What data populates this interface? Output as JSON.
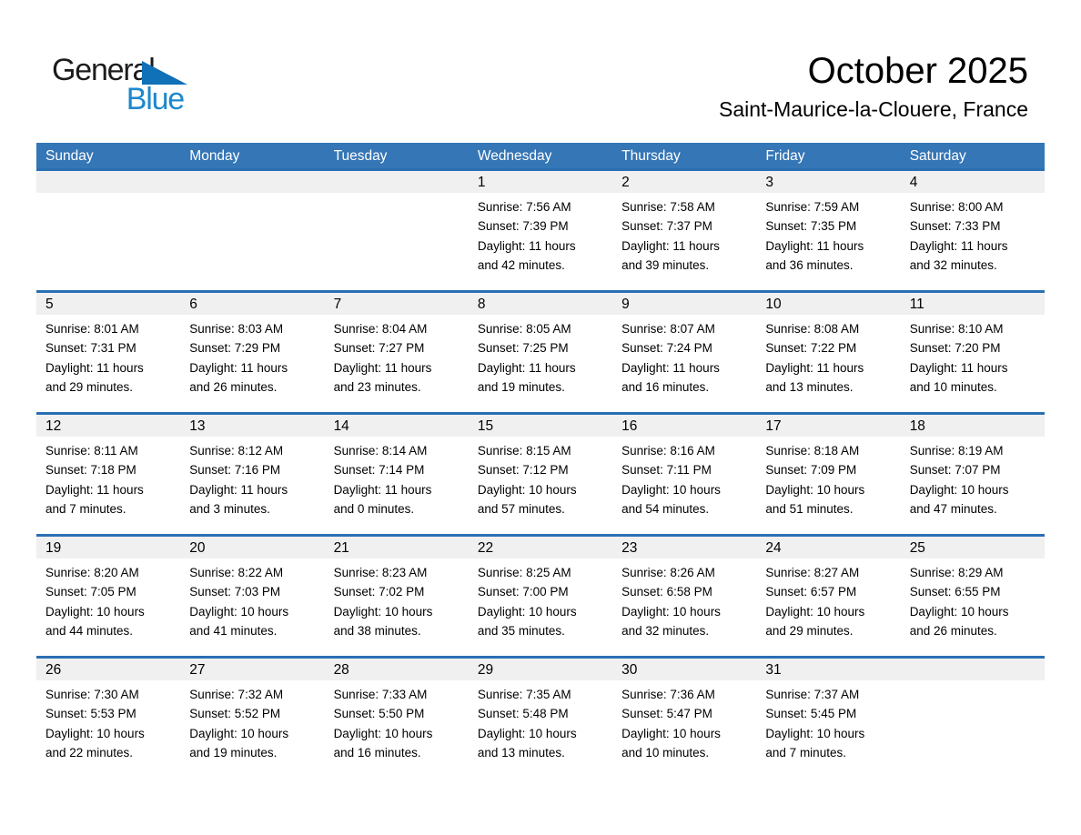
{
  "logo": {
    "line1": "General",
    "line2": "Blue"
  },
  "header": {
    "title": "October 2025",
    "location": "Saint-Maurice-la-Clouere, France"
  },
  "colors": {
    "header_bar": "#3576B6",
    "row_divider": "#2A6FB3",
    "day_band": "#F0F0F0",
    "logo_blue": "#1E88CC",
    "logo_triangle": "#1070B8"
  },
  "calendar": {
    "day_headers": [
      "Sunday",
      "Monday",
      "Tuesday",
      "Wednesday",
      "Thursday",
      "Friday",
      "Saturday"
    ],
    "weeks": [
      [
        null,
        null,
        null,
        {
          "day": "1",
          "sunrise": "Sunrise: 7:56 AM",
          "sunset": "Sunset: 7:39 PM",
          "daylight": [
            "Daylight: 11 hours",
            "and 42 minutes."
          ]
        },
        {
          "day": "2",
          "sunrise": "Sunrise: 7:58 AM",
          "sunset": "Sunset: 7:37 PM",
          "daylight": [
            "Daylight: 11 hours",
            "and 39 minutes."
          ]
        },
        {
          "day": "3",
          "sunrise": "Sunrise: 7:59 AM",
          "sunset": "Sunset: 7:35 PM",
          "daylight": [
            "Daylight: 11 hours",
            "and 36 minutes."
          ]
        },
        {
          "day": "4",
          "sunrise": "Sunrise: 8:00 AM",
          "sunset": "Sunset: 7:33 PM",
          "daylight": [
            "Daylight: 11 hours",
            "and 32 minutes."
          ]
        }
      ],
      [
        {
          "day": "5",
          "sunrise": "Sunrise: 8:01 AM",
          "sunset": "Sunset: 7:31 PM",
          "daylight": [
            "Daylight: 11 hours",
            "and 29 minutes."
          ]
        },
        {
          "day": "6",
          "sunrise": "Sunrise: 8:03 AM",
          "sunset": "Sunset: 7:29 PM",
          "daylight": [
            "Daylight: 11 hours",
            "and 26 minutes."
          ]
        },
        {
          "day": "7",
          "sunrise": "Sunrise: 8:04 AM",
          "sunset": "Sunset: 7:27 PM",
          "daylight": [
            "Daylight: 11 hours",
            "and 23 minutes."
          ]
        },
        {
          "day": "8",
          "sunrise": "Sunrise: 8:05 AM",
          "sunset": "Sunset: 7:25 PM",
          "daylight": [
            "Daylight: 11 hours",
            "and 19 minutes."
          ]
        },
        {
          "day": "9",
          "sunrise": "Sunrise: 8:07 AM",
          "sunset": "Sunset: 7:24 PM",
          "daylight": [
            "Daylight: 11 hours",
            "and 16 minutes."
          ]
        },
        {
          "day": "10",
          "sunrise": "Sunrise: 8:08 AM",
          "sunset": "Sunset: 7:22 PM",
          "daylight": [
            "Daylight: 11 hours",
            "and 13 minutes."
          ]
        },
        {
          "day": "11",
          "sunrise": "Sunrise: 8:10 AM",
          "sunset": "Sunset: 7:20 PM",
          "daylight": [
            "Daylight: 11 hours",
            "and 10 minutes."
          ]
        }
      ],
      [
        {
          "day": "12",
          "sunrise": "Sunrise: 8:11 AM",
          "sunset": "Sunset: 7:18 PM",
          "daylight": [
            "Daylight: 11 hours",
            "and 7 minutes."
          ]
        },
        {
          "day": "13",
          "sunrise": "Sunrise: 8:12 AM",
          "sunset": "Sunset: 7:16 PM",
          "daylight": [
            "Daylight: 11 hours",
            "and 3 minutes."
          ]
        },
        {
          "day": "14",
          "sunrise": "Sunrise: 8:14 AM",
          "sunset": "Sunset: 7:14 PM",
          "daylight": [
            "Daylight: 11 hours",
            "and 0 minutes."
          ]
        },
        {
          "day": "15",
          "sunrise": "Sunrise: 8:15 AM",
          "sunset": "Sunset: 7:12 PM",
          "daylight": [
            "Daylight: 10 hours",
            "and 57 minutes."
          ]
        },
        {
          "day": "16",
          "sunrise": "Sunrise: 8:16 AM",
          "sunset": "Sunset: 7:11 PM",
          "daylight": [
            "Daylight: 10 hours",
            "and 54 minutes."
          ]
        },
        {
          "day": "17",
          "sunrise": "Sunrise: 8:18 AM",
          "sunset": "Sunset: 7:09 PM",
          "daylight": [
            "Daylight: 10 hours",
            "and 51 minutes."
          ]
        },
        {
          "day": "18",
          "sunrise": "Sunrise: 8:19 AM",
          "sunset": "Sunset: 7:07 PM",
          "daylight": [
            "Daylight: 10 hours",
            "and 47 minutes."
          ]
        }
      ],
      [
        {
          "day": "19",
          "sunrise": "Sunrise: 8:20 AM",
          "sunset": "Sunset: 7:05 PM",
          "daylight": [
            "Daylight: 10 hours",
            "and 44 minutes."
          ]
        },
        {
          "day": "20",
          "sunrise": "Sunrise: 8:22 AM",
          "sunset": "Sunset: 7:03 PM",
          "daylight": [
            "Daylight: 10 hours",
            "and 41 minutes."
          ]
        },
        {
          "day": "21",
          "sunrise": "Sunrise: 8:23 AM",
          "sunset": "Sunset: 7:02 PM",
          "daylight": [
            "Daylight: 10 hours",
            "and 38 minutes."
          ]
        },
        {
          "day": "22",
          "sunrise": "Sunrise: 8:25 AM",
          "sunset": "Sunset: 7:00 PM",
          "daylight": [
            "Daylight: 10 hours",
            "and 35 minutes."
          ]
        },
        {
          "day": "23",
          "sunrise": "Sunrise: 8:26 AM",
          "sunset": "Sunset: 6:58 PM",
          "daylight": [
            "Daylight: 10 hours",
            "and 32 minutes."
          ]
        },
        {
          "day": "24",
          "sunrise": "Sunrise: 8:27 AM",
          "sunset": "Sunset: 6:57 PM",
          "daylight": [
            "Daylight: 10 hours",
            "and 29 minutes."
          ]
        },
        {
          "day": "25",
          "sunrise": "Sunrise: 8:29 AM",
          "sunset": "Sunset: 6:55 PM",
          "daylight": [
            "Daylight: 10 hours",
            "and 26 minutes."
          ]
        }
      ],
      [
        {
          "day": "26",
          "sunrise": "Sunrise: 7:30 AM",
          "sunset": "Sunset: 5:53 PM",
          "daylight": [
            "Daylight: 10 hours",
            "and 22 minutes."
          ]
        },
        {
          "day": "27",
          "sunrise": "Sunrise: 7:32 AM",
          "sunset": "Sunset: 5:52 PM",
          "daylight": [
            "Daylight: 10 hours",
            "and 19 minutes."
          ]
        },
        {
          "day": "28",
          "sunrise": "Sunrise: 7:33 AM",
          "sunset": "Sunset: 5:50 PM",
          "daylight": [
            "Daylight: 10 hours",
            "and 16 minutes."
          ]
        },
        {
          "day": "29",
          "sunrise": "Sunrise: 7:35 AM",
          "sunset": "Sunset: 5:48 PM",
          "daylight": [
            "Daylight: 10 hours",
            "and 13 minutes."
          ]
        },
        {
          "day": "30",
          "sunrise": "Sunrise: 7:36 AM",
          "sunset": "Sunset: 5:47 PM",
          "daylight": [
            "Daylight: 10 hours",
            "and 10 minutes."
          ]
        },
        {
          "day": "31",
          "sunrise": "Sunrise: 7:37 AM",
          "sunset": "Sunset: 5:45 PM",
          "daylight": [
            "Daylight: 10 hours",
            "and 7 minutes."
          ]
        },
        null
      ]
    ]
  }
}
